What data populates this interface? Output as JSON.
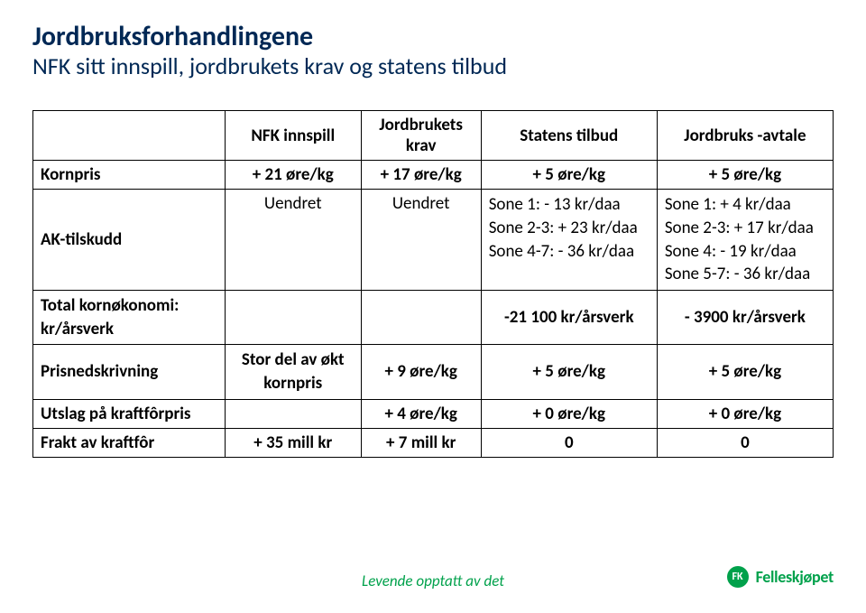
{
  "title": "Jordbruksforhandlingene",
  "subtitle": "NFK sitt innspill, jordbrukets krav og statens tilbud",
  "columns": {
    "c1": "",
    "c2": "NFK innspill",
    "c3": "Jordbrukets krav",
    "c4": "Statens tilbud",
    "c5": "Jordbruks -avtale"
  },
  "rows": {
    "kornpris": {
      "label": "Kornpris",
      "c2": "+ 21 øre/kg",
      "c3": "+ 17 øre/kg",
      "c4": "+ 5 øre/kg",
      "c5": "+ 5 øre/kg"
    },
    "aktilskudd": {
      "label": "AK-tilskudd",
      "c2": "Uendret",
      "c3": "Uendret",
      "c4_l1": "Sone 1: - 13 kr/daa",
      "c4_l2": "Sone 2-3: + 23 kr/daa",
      "c4_l3": "Sone 4-7: - 36 kr/daa",
      "c5_l1": "Sone 1:     + 4 kr/daa",
      "c5_l2": "Sone 2-3: + 17 kr/daa",
      "c5_l3": "Sone 4:    - 19 kr/daa",
      "c5_l4": "Sone 5-7: - 36 kr/daa"
    },
    "totalkorn": {
      "label_l1": "Total kornøkonomi:",
      "label_l2": "kr/årsverk",
      "c2": "",
      "c3": "",
      "c4": "-21 100 kr/årsverk",
      "c5": "- 3900 kr/årsverk"
    },
    "prisned": {
      "label": "Prisnedskrivning",
      "c2_l1": "Stor del av økt",
      "c2_l2": "kornpris",
      "c3": "+ 9 øre/kg",
      "c4": "+ 5 øre/kg",
      "c5": "+ 5 øre/kg"
    },
    "utslag": {
      "label": "Utslag på kraftfôrpris",
      "c2": "",
      "c3": "+ 4 øre/kg",
      "c4": "+ 0 øre/kg",
      "c5": "+ 0 øre/kg"
    },
    "frakt": {
      "label": "Frakt av kraftfôr",
      "c2": "+ 35 mill kr",
      "c3": "+ 7 mill kr",
      "c4": "0",
      "c5": "0"
    }
  },
  "footer": {
    "tagline": "Levende opptatt av det",
    "badge": "FK",
    "brand": "Felleskjøpet",
    "tagline_color": "#00a14b",
    "brand_color": "#00a14b"
  },
  "colors": {
    "title": "#002855",
    "text": "#000000",
    "border": "#000000",
    "background": "#ffffff"
  },
  "typography": {
    "title_fontsize": 30,
    "subtitle_fontsize": 26,
    "table_fontsize": 19,
    "footer_fontsize": 17
  }
}
